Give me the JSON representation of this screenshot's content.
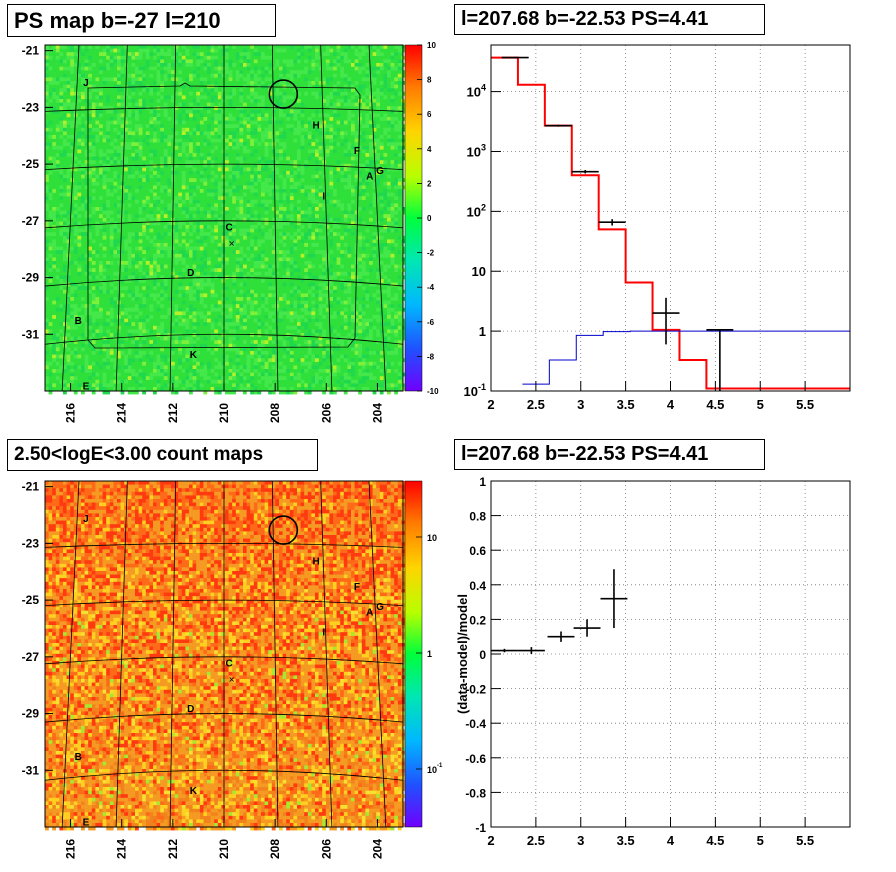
{
  "panels": {
    "tl_title": "PS map b=-27 l=210",
    "tr_title": "l=207.68 b=-22.53 PS=4.41",
    "bl_title": "2.50<logE<3.00 count maps",
    "br_title": "l=207.68 b=-22.53 PS=4.41"
  },
  "colors": {
    "map_top_base": "#2fe03a",
    "map_bottom_base": "#f1821c",
    "model_line": "#ff0000",
    "bg_line": "#0000cc",
    "data": "#000000"
  },
  "chart_data": [
    {
      "type": "heatmap",
      "title": "PS map b=-27 l=210",
      "x_ticks": [
        "216",
        "214",
        "212",
        "210",
        "208",
        "206",
        "204"
      ],
      "x_tick_values": [
        216,
        214,
        212,
        210,
        208,
        206,
        204
      ],
      "xlim": [
        217,
        203
      ],
      "y_ticks": [
        "-21",
        "-23",
        "-25",
        "-27",
        "-29",
        "-31"
      ],
      "y_tick_values": [
        -21,
        -23,
        -25,
        -27,
        -29,
        -31
      ],
      "ylim": [
        -33,
        -20.8
      ],
      "colorbar": {
        "ticks": [
          "10",
          "8",
          "6",
          "4",
          "2",
          "0",
          "-2",
          "-4",
          "-6",
          "-8",
          "-10"
        ],
        "range": [
          -10,
          10
        ]
      },
      "source_labels": [
        {
          "label": "J",
          "l": 215.4,
          "b": -22.1
        },
        {
          "label": "H",
          "l": 206.4,
          "b": -23.6
        },
        {
          "label": "F",
          "l": 204.8,
          "b": -24.5
        },
        {
          "label": "A",
          "l": 204.3,
          "b": -25.4
        },
        {
          "label": "G",
          "l": 203.9,
          "b": -25.2
        },
        {
          "label": "I",
          "l": 206.1,
          "b": -26.1
        },
        {
          "label": "C",
          "l": 209.8,
          "b": -27.2
        },
        {
          "label": "D",
          "l": 211.3,
          "b": -28.8
        },
        {
          "label": "B",
          "l": 215.7,
          "b": -30.5
        },
        {
          "label": "K",
          "l": 211.2,
          "b": -31.7
        },
        {
          "label": "E",
          "l": 215.4,
          "b": -32.8
        }
      ],
      "circle": {
        "l": 207.68,
        "b": -22.53
      }
    },
    {
      "type": "line",
      "title": "l=207.68 b=-22.53 PS=4.41",
      "yscale": "log",
      "xlim": [
        2,
        6
      ],
      "ylim": [
        0.1,
        60000
      ],
      "x_ticks": [
        "2",
        "2.5",
        "3",
        "3.5",
        "4",
        "4.5",
        "5",
        "5.5"
      ],
      "x_tick_values": [
        2,
        2.5,
        3,
        3.5,
        4,
        4.5,
        5,
        5.5
      ],
      "y_ticks": [
        "10^-1",
        "1",
        "10",
        "10^2",
        "10^3",
        "10^4"
      ],
      "y_tick_values": [
        0.1,
        1,
        10,
        100,
        1000,
        10000
      ],
      "grid": true,
      "series": [
        {
          "role": "model",
          "edges": [
            2,
            2.3,
            2.6,
            2.9,
            3.2,
            3.5,
            3.8,
            4.1,
            4.4,
            4.7,
            5.0,
            6.0
          ],
          "values": [
            37000,
            13000,
            2700,
            400,
            50,
            6.5,
            1.05,
            0.33,
            0.11,
            0.11,
            0.11
          ]
        },
        {
          "role": "background",
          "edges": [
            2.35,
            2.65,
            2.95,
            3.25,
            3.55,
            3.85,
            4.15,
            6.0
          ],
          "values": [
            0.13,
            0.33,
            0.85,
            0.98,
            1.0,
            1.0,
            1.0
          ]
        }
      ],
      "points": [
        {
          "x": 2.27,
          "y": 37000,
          "xerr": 0.15,
          "ylo": 36000,
          "yhi": 38000
        },
        {
          "x": 2.75,
          "y": 2700,
          "xerr": 0.15,
          "ylo": 2600,
          "yhi": 2800
        },
        {
          "x": 3.05,
          "y": 460,
          "xerr": 0.15,
          "ylo": 430,
          "yhi": 490
        },
        {
          "x": 3.35,
          "y": 66,
          "xerr": 0.15,
          "ylo": 58,
          "yhi": 74
        },
        {
          "x": 3.95,
          "y": 2.0,
          "xerr": 0.15,
          "ylo": 0.6,
          "yhi": 3.6
        },
        {
          "x": 4.55,
          "y": 1.05,
          "xerr": 0.15,
          "ylo": 0.1,
          "yhi": 1.05
        }
      ]
    },
    {
      "type": "heatmap",
      "title": "2.50<logE<3.00 count maps",
      "x_ticks": [
        "216",
        "214",
        "212",
        "210",
        "208",
        "206",
        "204"
      ],
      "y_ticks": [
        "-21",
        "-23",
        "-25",
        "-27",
        "-29",
        "-31"
      ],
      "colorbar": {
        "ticks": [
          "10",
          "1",
          "10^-1"
        ],
        "scale": "log"
      }
    },
    {
      "type": "scatter",
      "title": "l=207.68 b=-22.53 PS=4.41",
      "ylabel": "(data-model)/model",
      "xlim": [
        2,
        6
      ],
      "ylim": [
        -1,
        1
      ],
      "x_ticks": [
        "2",
        "2.5",
        "3",
        "3.5",
        "4",
        "4.5",
        "5",
        "5.5"
      ],
      "x_tick_values": [
        2,
        2.5,
        3,
        3.5,
        4,
        4.5,
        5,
        5.5
      ],
      "y_ticks": [
        "1",
        "0.8",
        "0.6",
        "0.4",
        "0.2",
        "0",
        "-0.2",
        "-0.4",
        "-0.6",
        "-0.8",
        "-1"
      ],
      "y_tick_values": [
        1,
        0.8,
        0.6,
        0.4,
        0.2,
        0,
        -0.2,
        -0.4,
        -0.6,
        -0.8,
        -1
      ],
      "grid": true,
      "points": [
        {
          "x": 2.15,
          "y": 0.02,
          "xerr": 0.15,
          "yerr": 0.01
        },
        {
          "x": 2.45,
          "y": 0.02,
          "xerr": 0.15,
          "yerr": 0.02
        },
        {
          "x": 2.78,
          "y": 0.1,
          "xerr": 0.15,
          "yerr": 0.03
        },
        {
          "x": 3.07,
          "y": 0.15,
          "xerr": 0.15,
          "yerr": 0.05
        },
        {
          "x": 3.37,
          "y": 0.32,
          "xerr": 0.15,
          "yerr": 0.17
        }
      ]
    }
  ]
}
